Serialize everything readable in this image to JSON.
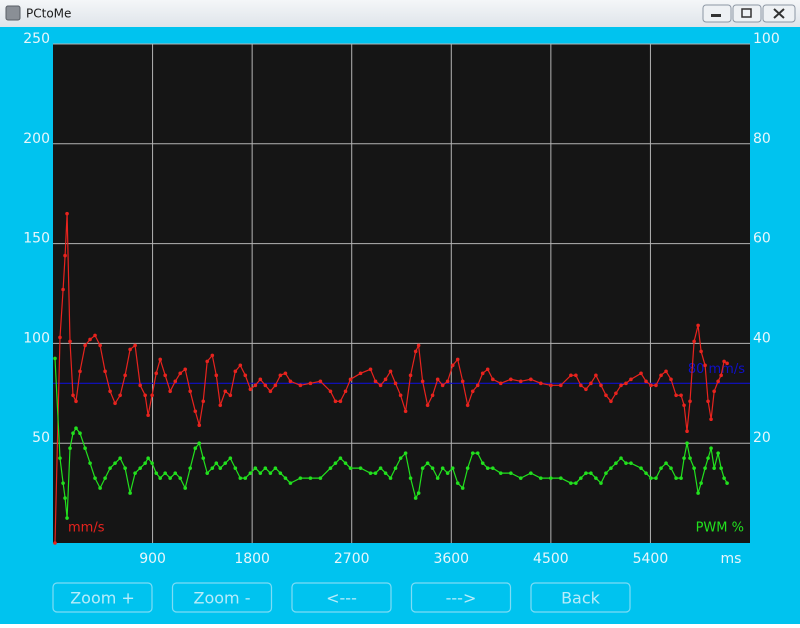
{
  "window": {
    "title": "PCtoMe"
  },
  "buttons": [
    "Zoom +",
    "Zoom -",
    "<---",
    "--->",
    "Back"
  ],
  "chart_data": {
    "type": "line",
    "x_label": "ms",
    "xlim": [
      0,
      6300
    ],
    "xticks": [
      900,
      1800,
      2700,
      3600,
      4500,
      5400
    ],
    "ylim": [
      0,
      250
    ],
    "yticks": [
      50,
      100,
      150,
      200,
      250
    ],
    "y2lim": [
      0,
      100
    ],
    "y2ticks": [
      20,
      40,
      60,
      80,
      100
    ],
    "grid": true,
    "markers": true,
    "background": "#151515",
    "grid_color": "#b4b4b4",
    "reference_line": {
      "value": 80,
      "label": "80 mm/s",
      "color": "#1010c8"
    },
    "x": [
      18,
      63,
      91,
      109,
      127,
      154,
      181,
      208,
      244,
      290,
      335,
      380,
      426,
      471,
      516,
      561,
      607,
      652,
      697,
      742,
      788,
      833,
      860,
      896,
      933,
      969,
      1014,
      1059,
      1105,
      1150,
      1195,
      1240,
      1286,
      1322,
      1358,
      1394,
      1440,
      1476,
      1512,
      1557,
      1603,
      1648,
      1693,
      1738,
      1784,
      1829,
      1874,
      1919,
      1965,
      2010,
      2055,
      2101,
      2146,
      2236,
      2327,
      2417,
      2508,
      2553,
      2598,
      2644,
      2689,
      2780,
      2870,
      2915,
      2961,
      3006,
      3051,
      3096,
      3142,
      3187,
      3232,
      3278,
      3305,
      3341,
      3386,
      3431,
      3477,
      3522,
      3567,
      3613,
      3658,
      3703,
      3748,
      3794,
      3839,
      3884,
      3929,
      3975,
      4047,
      4138,
      4228,
      4319,
      4409,
      4500,
      4590,
      4681,
      4726,
      4771,
      4817,
      4862,
      4907,
      4953,
      4998,
      5043,
      5088,
      5134,
      5179,
      5224,
      5315,
      5360,
      5405,
      5450,
      5496,
      5541,
      5586,
      5632,
      5677,
      5704,
      5731,
      5758,
      5795,
      5831,
      5858,
      5894,
      5921,
      5948,
      5976,
      6012,
      6039,
      6066,
      6093
    ],
    "series": [
      {
        "name": "mm/s",
        "color": "#e8231e",
        "legend": "lower-left",
        "values": [
          0,
          103,
          127,
          144,
          165,
          101,
          74,
          71,
          86,
          99,
          102,
          104,
          99,
          86,
          76,
          70,
          74,
          84,
          97,
          99,
          79,
          74,
          64,
          74,
          85,
          92,
          84,
          76,
          81,
          85,
          87,
          76,
          66,
          59,
          71,
          91,
          94,
          84,
          69,
          76,
          74,
          86,
          89,
          84,
          77,
          79,
          82,
          79,
          76,
          79,
          84,
          85,
          81,
          79,
          80,
          81,
          76,
          71,
          71,
          76,
          82,
          85,
          87,
          81,
          79,
          82,
          86,
          80,
          74,
          66,
          84,
          96,
          99,
          81,
          69,
          74,
          82,
          79,
          81,
          89,
          92,
          81,
          69,
          76,
          79,
          85,
          87,
          82,
          80,
          82,
          81,
          82,
          80,
          79,
          79,
          84,
          84,
          79,
          77,
          80,
          84,
          79,
          74,
          71,
          75,
          79,
          80,
          82,
          85,
          81,
          79,
          79,
          84,
          86,
          82,
          74,
          74,
          69,
          56,
          71,
          101,
          109,
          96,
          89,
          71,
          62,
          76,
          81,
          84,
          91,
          90
        ]
      },
      {
        "name": "PWM %",
        "color": "#22e01e",
        "axis": "y2",
        "legend": "lower-right",
        "values": [
          37,
          17,
          12,
          9,
          5,
          19,
          22,
          23,
          22,
          19,
          16,
          13,
          11,
          13,
          15,
          16,
          17,
          15,
          10,
          14,
          15,
          16,
          17,
          16,
          14,
          13,
          14,
          13,
          14,
          13,
          11,
          15,
          19,
          20,
          17,
          14,
          15,
          16,
          15,
          16,
          17,
          15,
          13,
          13,
          14,
          15,
          14,
          15,
          14,
          15,
          14,
          13,
          12,
          13,
          13,
          13,
          15,
          16,
          17,
          16,
          15,
          15,
          14,
          14,
          15,
          14,
          13,
          15,
          17,
          18,
          13,
          9,
          10,
          15,
          16,
          15,
          13,
          15,
          14,
          15,
          12,
          11,
          15,
          18,
          18,
          16,
          15,
          15,
          14,
          14,
          13,
          14,
          13,
          13,
          13,
          12,
          12,
          13,
          14,
          14,
          13,
          12,
          14,
          15,
          16,
          17,
          16,
          16,
          15,
          14,
          13,
          13,
          15,
          16,
          15,
          13,
          13,
          17,
          20,
          17,
          15,
          10,
          12,
          15,
          17,
          19,
          15,
          18,
          15,
          13,
          12
        ]
      }
    ]
  }
}
